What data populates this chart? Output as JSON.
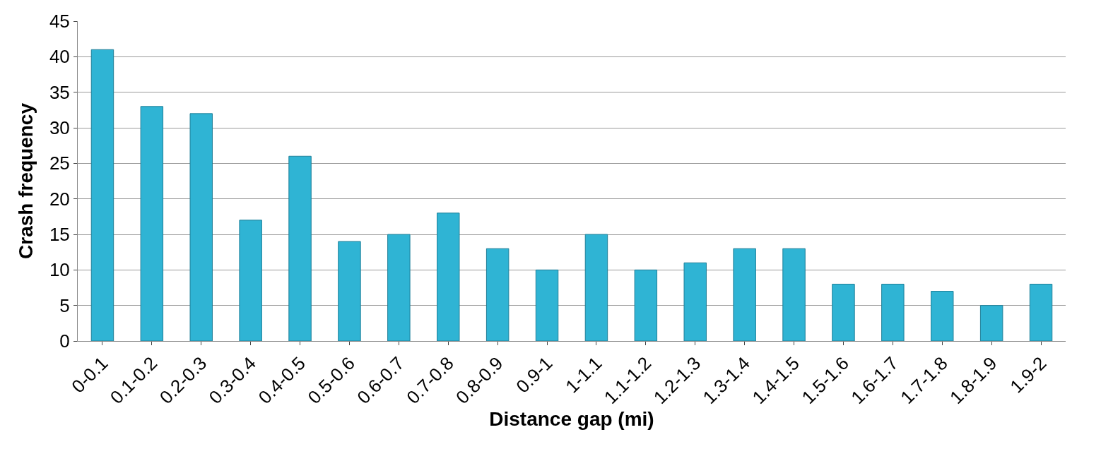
{
  "chart_data": {
    "type": "bar",
    "xlabel": "Distance gap (mi)",
    "ylabel": "Crash frequency",
    "categories": [
      "0-0.1",
      "0.1-0.2",
      "0.2-0.3",
      "0.3-0.4",
      "0.4-0.5",
      "0.5-0.6",
      "0.6-0.7",
      "0.7-0.8",
      "0.8-0.9",
      "0.9-1",
      "1-1.1",
      "1.1-1.2",
      "1.2-1.3",
      "1.3-1.4",
      "1.4-1.5",
      "1.5-1.6",
      "1.6-1.7",
      "1.7-1.8",
      "1.8-1.9",
      "1.9-2"
    ],
    "values": [
      41,
      33,
      32,
      17,
      26,
      14,
      15,
      18,
      13,
      10,
      15,
      10,
      11,
      13,
      13,
      8,
      8,
      7,
      5,
      8
    ],
    "color": "#2fb4d4",
    "ylim": [
      0,
      45
    ],
    "yticks": [
      0,
      5,
      10,
      15,
      20,
      25,
      30,
      35,
      40,
      45
    ],
    "grid": "y"
  }
}
